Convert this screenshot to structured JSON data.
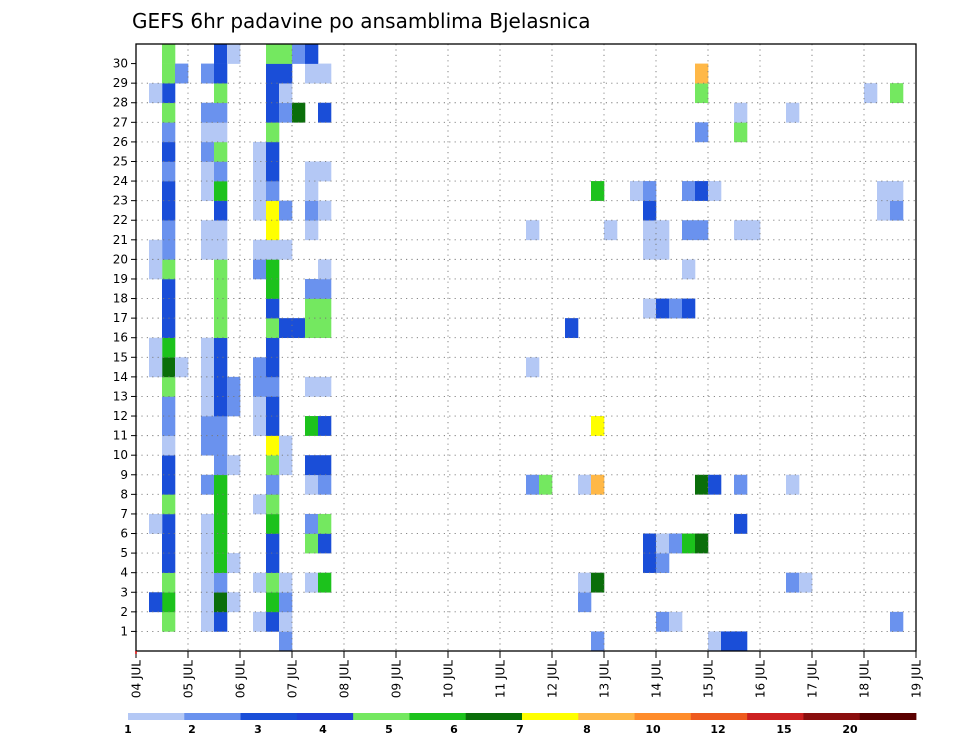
{
  "chart_data": {
    "type": "heatmap",
    "title": "GEFS 6hr padavine po ansamblima Bjelasnica",
    "y_ticks": [
      "1",
      "2",
      "3",
      "4",
      "5",
      "6",
      "7",
      "8",
      "9",
      "10",
      "11",
      "12",
      "13",
      "14",
      "15",
      "16",
      "17",
      "18",
      "19",
      "20",
      "21",
      "22",
      "23",
      "24",
      "25",
      "26",
      "27",
      "28",
      "29",
      "30"
    ],
    "x_ticks": [
      "04 JUL",
      "05 JUL",
      "06 JUL",
      "07 JUL",
      "08 JUL",
      "09 JUL",
      "10 JUL",
      "11 JUL",
      "12 JUL",
      "13 JUL",
      "14 JUL",
      "15 JUL",
      "16 JUL",
      "17 JUL",
      "18 JUL",
      "19 JUL"
    ],
    "grid": true,
    "legend_position": "bottom",
    "legend": {
      "colors": [
        "#b4c8f5",
        "#6a92ee",
        "#1a4ed8",
        "#1f40d8",
        "#74e860",
        "#1cc21c",
        "#0a6e0a",
        "#ffff00",
        "#ffb847",
        "#ff8c2a",
        "#ee5a1e",
        "#cc2020",
        "#8a0e0e",
        "#5a0000"
      ],
      "labels": [
        "1",
        "2",
        "3",
        "4",
        "5",
        "6",
        "7",
        "8",
        "10",
        "12",
        "15",
        "20"
      ]
    },
    "cells": [
      [
        2,
        1,
        5
      ],
      [
        2,
        2,
        6
      ],
      [
        2,
        3,
        5
      ],
      [
        2,
        4,
        3
      ],
      [
        2,
        5,
        3
      ],
      [
        2,
        6,
        3
      ],
      [
        2,
        7,
        5
      ],
      [
        2,
        8,
        3
      ],
      [
        2,
        9,
        3
      ],
      [
        2,
        10,
        1
      ],
      [
        2,
        11,
        2
      ],
      [
        2,
        12,
        2
      ],
      [
        2,
        13,
        5
      ],
      [
        2,
        14,
        7
      ],
      [
        2,
        15,
        6
      ],
      [
        2,
        16,
        3
      ],
      [
        2,
        17,
        3
      ],
      [
        2,
        18,
        3
      ],
      [
        2,
        19,
        5
      ],
      [
        2,
        20,
        2
      ],
      [
        2,
        21,
        2
      ],
      [
        2,
        22,
        3
      ],
      [
        2,
        23,
        3
      ],
      [
        2,
        24,
        2
      ],
      [
        2,
        25,
        3
      ],
      [
        2,
        26,
        2
      ],
      [
        2,
        27,
        5
      ],
      [
        2,
        28,
        3
      ],
      [
        2,
        29,
        5
      ],
      [
        2,
        30,
        5
      ],
      [
        1,
        2,
        3
      ],
      [
        1,
        6,
        1
      ],
      [
        1,
        14,
        1
      ],
      [
        1,
        15,
        1
      ],
      [
        1,
        19,
        1
      ],
      [
        1,
        20,
        1
      ],
      [
        1,
        28,
        1
      ],
      [
        3,
        29,
        2
      ],
      [
        3,
        14,
        1
      ],
      [
        5,
        1,
        1
      ],
      [
        5,
        2,
        1
      ],
      [
        5,
        3,
        1
      ],
      [
        5,
        4,
        1
      ],
      [
        5,
        5,
        1
      ],
      [
        5,
        6,
        1
      ],
      [
        5,
        8,
        2
      ],
      [
        5,
        10,
        2
      ],
      [
        5,
        11,
        2
      ],
      [
        5,
        12,
        1
      ],
      [
        5,
        13,
        1
      ],
      [
        5,
        14,
        1
      ],
      [
        5,
        15,
        1
      ],
      [
        5,
        20,
        1
      ],
      [
        5,
        21,
        1
      ],
      [
        5,
        23,
        1
      ],
      [
        5,
        24,
        1
      ],
      [
        5,
        25,
        2
      ],
      [
        5,
        26,
        1
      ],
      [
        5,
        27,
        2
      ],
      [
        5,
        29,
        2
      ],
      [
        6,
        1,
        3
      ],
      [
        6,
        2,
        7
      ],
      [
        6,
        3,
        2
      ],
      [
        6,
        4,
        6
      ],
      [
        6,
        5,
        6
      ],
      [
        6,
        6,
        6
      ],
      [
        6,
        7,
        6
      ],
      [
        6,
        8,
        6
      ],
      [
        6,
        9,
        2
      ],
      [
        6,
        10,
        2
      ],
      [
        6,
        11,
        2
      ],
      [
        6,
        12,
        3
      ],
      [
        6,
        13,
        3
      ],
      [
        6,
        14,
        3
      ],
      [
        6,
        15,
        3
      ],
      [
        6,
        16,
        5
      ],
      [
        6,
        17,
        5
      ],
      [
        6,
        18,
        5
      ],
      [
        6,
        19,
        5
      ],
      [
        6,
        20,
        1
      ],
      [
        6,
        21,
        1
      ],
      [
        6,
        22,
        3
      ],
      [
        6,
        23,
        6
      ],
      [
        6,
        24,
        2
      ],
      [
        6,
        25,
        5
      ],
      [
        6,
        26,
        1
      ],
      [
        6,
        27,
        2
      ],
      [
        6,
        28,
        5
      ],
      [
        6,
        29,
        3
      ],
      [
        6,
        30,
        3
      ],
      [
        7,
        2,
        1
      ],
      [
        7,
        4,
        1
      ],
      [
        7,
        9,
        1
      ],
      [
        7,
        12,
        2
      ],
      [
        7,
        13,
        2
      ],
      [
        7,
        30,
        1
      ],
      [
        9,
        1,
        1
      ],
      [
        9,
        3,
        1
      ],
      [
        9,
        7,
        1
      ],
      [
        9,
        11,
        1
      ],
      [
        9,
        12,
        1
      ],
      [
        9,
        13,
        2
      ],
      [
        9,
        14,
        2
      ],
      [
        9,
        19,
        2
      ],
      [
        9,
        20,
        1
      ],
      [
        9,
        22,
        1
      ],
      [
        9,
        23,
        1
      ],
      [
        9,
        24,
        1
      ],
      [
        9,
        25,
        1
      ],
      [
        10,
        1,
        3
      ],
      [
        10,
        2,
        6
      ],
      [
        10,
        3,
        5
      ],
      [
        10,
        4,
        3
      ],
      [
        10,
        5,
        3
      ],
      [
        10,
        6,
        6
      ],
      [
        10,
        7,
        5
      ],
      [
        10,
        8,
        2
      ],
      [
        10,
        9,
        5
      ],
      [
        10,
        10,
        8
      ],
      [
        10,
        11,
        3
      ],
      [
        10,
        12,
        3
      ],
      [
        10,
        13,
        2
      ],
      [
        10,
        14,
        3
      ],
      [
        10,
        15,
        3
      ],
      [
        10,
        16,
        5
      ],
      [
        10,
        17,
        3
      ],
      [
        10,
        18,
        6
      ],
      [
        10,
        19,
        6
      ],
      [
        10,
        20,
        1
      ],
      [
        10,
        21,
        8
      ],
      [
        10,
        22,
        8
      ],
      [
        10,
        23,
        2
      ],
      [
        10,
        24,
        3
      ],
      [
        10,
        25,
        3
      ],
      [
        10,
        26,
        5
      ],
      [
        10,
        27,
        3
      ],
      [
        10,
        28,
        3
      ],
      [
        10,
        29,
        3
      ],
      [
        10,
        30,
        5
      ],
      [
        11,
        0,
        2
      ],
      [
        11,
        1,
        1
      ],
      [
        11,
        2,
        2
      ],
      [
        11,
        3,
        1
      ],
      [
        11,
        10,
        1
      ],
      [
        11,
        20,
        1
      ],
      [
        11,
        22,
        2
      ],
      [
        11,
        27,
        2
      ],
      [
        11,
        28,
        1
      ],
      [
        11,
        29,
        3
      ],
      [
        11,
        30,
        5
      ],
      [
        11,
        16,
        3
      ],
      [
        11,
        9,
        1
      ],
      [
        12,
        30,
        2
      ],
      [
        12,
        27,
        7
      ],
      [
        12,
        16,
        3
      ],
      [
        13,
        3,
        1
      ],
      [
        13,
        5,
        5
      ],
      [
        13,
        6,
        2
      ],
      [
        13,
        8,
        1
      ],
      [
        13,
        9,
        3
      ],
      [
        13,
        11,
        6
      ],
      [
        13,
        13,
        1
      ],
      [
        13,
        16,
        5
      ],
      [
        13,
        17,
        5
      ],
      [
        13,
        18,
        2
      ],
      [
        13,
        21,
        1
      ],
      [
        13,
        22,
        2
      ],
      [
        13,
        23,
        1
      ],
      [
        13,
        24,
        1
      ],
      [
        13,
        29,
        1
      ],
      [
        13,
        30,
        3
      ],
      [
        14,
        3,
        6
      ],
      [
        14,
        5,
        3
      ],
      [
        14,
        6,
        5
      ],
      [
        14,
        8,
        2
      ],
      [
        14,
        9,
        3
      ],
      [
        14,
        11,
        3
      ],
      [
        14,
        13,
        1
      ],
      [
        14,
        16,
        5
      ],
      [
        14,
        17,
        5
      ],
      [
        14,
        18,
        2
      ],
      [
        14,
        19,
        1
      ],
      [
        14,
        22,
        1
      ],
      [
        14,
        24,
        1
      ],
      [
        14,
        27,
        3
      ],
      [
        14,
        29,
        1
      ],
      [
        30,
        21,
        1
      ],
      [
        30,
        14,
        1
      ],
      [
        30,
        8,
        2
      ],
      [
        31,
        8,
        5
      ],
      [
        33,
        16,
        3
      ],
      [
        34,
        2,
        2
      ],
      [
        34,
        3,
        1
      ],
      [
        34,
        8,
        1
      ],
      [
        35,
        0,
        2
      ],
      [
        35,
        3,
        7
      ],
      [
        35,
        8,
        9
      ],
      [
        35,
        11,
        8
      ],
      [
        35,
        23,
        6
      ],
      [
        36,
        21,
        1
      ],
      [
        38,
        23,
        1
      ],
      [
        39,
        4,
        3
      ],
      [
        39,
        5,
        3
      ],
      [
        39,
        17,
        1
      ],
      [
        39,
        20,
        1
      ],
      [
        39,
        21,
        1
      ],
      [
        39,
        22,
        3
      ],
      [
        39,
        23,
        2
      ],
      [
        40,
        1,
        2
      ],
      [
        40,
        4,
        2
      ],
      [
        40,
        5,
        1
      ],
      [
        40,
        17,
        3
      ],
      [
        40,
        20,
        1
      ],
      [
        40,
        21,
        1
      ],
      [
        41,
        1,
        1
      ],
      [
        41,
        5,
        2
      ],
      [
        41,
        17,
        2
      ],
      [
        42,
        5,
        6
      ],
      [
        42,
        17,
        3
      ],
      [
        42,
        19,
        1
      ],
      [
        42,
        21,
        2
      ],
      [
        42,
        23,
        2
      ],
      [
        43,
        5,
        7
      ],
      [
        43,
        8,
        7
      ],
      [
        43,
        21,
        2
      ],
      [
        43,
        23,
        3
      ],
      [
        43,
        26,
        2
      ],
      [
        43,
        28,
        5
      ],
      [
        43,
        29,
        9
      ],
      [
        44,
        0,
        1
      ],
      [
        44,
        8,
        3
      ],
      [
        44,
        23,
        1
      ],
      [
        45,
        0,
        3
      ],
      [
        46,
        0,
        3
      ],
      [
        46,
        6,
        3
      ],
      [
        46,
        8,
        2
      ],
      [
        46,
        21,
        1
      ],
      [
        46,
        26,
        5
      ],
      [
        46,
        27,
        1
      ],
      [
        47,
        21,
        1
      ],
      [
        50,
        3,
        2
      ],
      [
        50,
        8,
        1
      ],
      [
        50,
        27,
        1
      ],
      [
        51,
        3,
        1
      ],
      [
        56,
        28,
        1
      ],
      [
        57,
        22,
        1
      ],
      [
        57,
        23,
        1
      ],
      [
        58,
        1,
        2
      ],
      [
        58,
        22,
        2
      ],
      [
        58,
        23,
        1
      ],
      [
        58,
        28,
        5
      ]
    ]
  }
}
